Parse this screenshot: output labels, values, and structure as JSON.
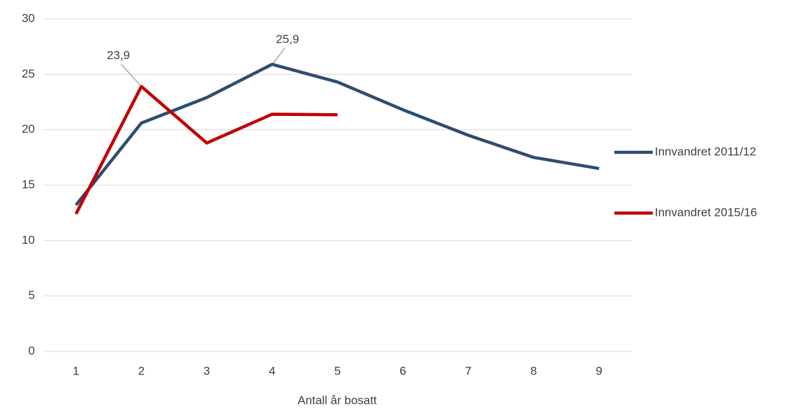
{
  "chart_data": {
    "type": "line",
    "x_label": "Antall år bosatt",
    "categories": [
      "1",
      "2",
      "3",
      "4",
      "5",
      "6",
      "7",
      "8",
      "9"
    ],
    "series": [
      {
        "name": "Innvandret 2011/12",
        "color": "#2e4d6e",
        "values": [
          13.2,
          20.6,
          22.9,
          25.9,
          24.3,
          21.8,
          19.5,
          17.5,
          16.5
        ],
        "value_labels": [
          null,
          null,
          null,
          "25,9",
          null,
          null,
          null,
          null,
          null
        ]
      },
      {
        "name": "Innvandret 2015/16",
        "color": "#c00000",
        "values": [
          12.4,
          23.9,
          18.8,
          21.4,
          21.35,
          null,
          null,
          null,
          null
        ],
        "value_labels": [
          null,
          "23,9",
          null,
          null,
          null,
          null,
          null,
          null,
          null
        ]
      }
    ],
    "ylim": [
      0,
      30
    ],
    "yticks": [
      0,
      5,
      10,
      15,
      20,
      25,
      30
    ],
    "grid": true,
    "legend": "right"
  }
}
